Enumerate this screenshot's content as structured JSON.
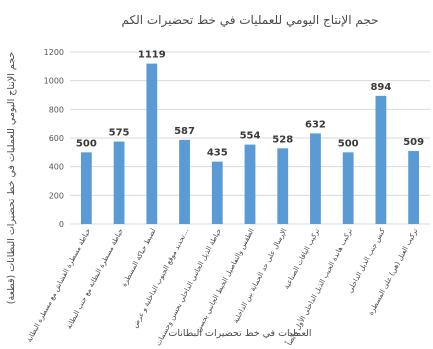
{
  "chart_data": {
    "type": "bar",
    "title": "حجم الإنتاج اليومي للعمليات في خط تحضيرات الكم",
    "xlabel": "العمليات في خط تحضيرات البطانات",
    "ylabel": "حجم الإنتاج اليومي للعمليات في خط تحضيرات البطانات (قطعة)",
    "ylim": [
      0,
      1200
    ],
    "yticks": [
      0,
      200,
      400,
      600,
      800,
      1000,
      1200
    ],
    "grid": true,
    "legend": "none",
    "bar_color": "#5b9bd5",
    "categories": [
      "خياطة مسطرة القشاش مع مسطرة البطانة",
      "خياطة مسطرة البطانة مع جنب البطانة",
      "لضبط حياكة المسطرة",
      "تحديد موقع الجيوب الداخلية و عرض…",
      "خياطة الذيل الجانبي الداخلي بحسن وجسمات",
      "الطقس والتفاصيل الخيط الجانبي بحسن",
      "الإرسال على حد الحماية بين الداخلية",
      "تركيب الياقات الصناعية",
      "تركيب هاندة الجيب الذيل الداخلي الأول وأيضاً",
      "كبس جنب الذيل الداخلي",
      "تركيب العبل (هي) على المسطرة"
    ],
    "values": [
      500,
      575,
      1119,
      587,
      435,
      554,
      528,
      632,
      500,
      894,
      509
    ]
  }
}
